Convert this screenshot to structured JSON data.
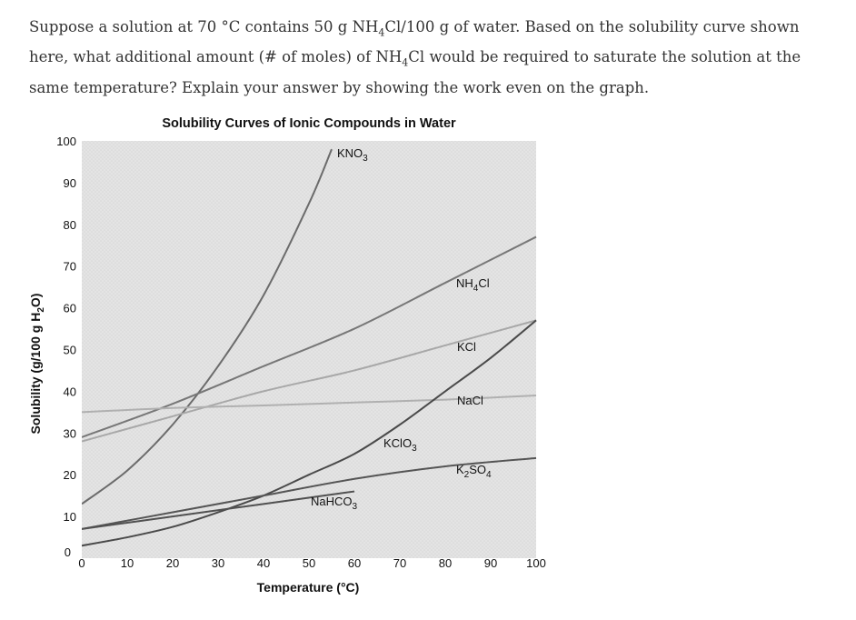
{
  "question": {
    "part1": "Suppose a solution at 70 °C contains 50 g NH",
    "sub1": "4",
    "part2": "Cl/100 g of water. Based on the solubility curve shown here, what additional amount (# of moles) of NH",
    "sub2": "4",
    "part3": "Cl would be required to saturate the solution at the same temperature? Explain your answer by showing the work even on the graph."
  },
  "chart_data": {
    "type": "line",
    "title": "Solubility Curves of Ionic Compounds in Water",
    "xlabel": "Temperature (°C)",
    "ylabel": {
      "main": "Solubility (g/100 g H",
      "sub": "2",
      "end": "O)"
    },
    "xlim": [
      0,
      100
    ],
    "ylim": [
      0,
      100
    ],
    "xticks": [
      0,
      10,
      20,
      30,
      40,
      50,
      60,
      70,
      80,
      90,
      100
    ],
    "yticks": [
      0,
      10,
      20,
      30,
      40,
      50,
      60,
      70,
      80,
      90,
      100
    ],
    "grid": false,
    "series": [
      {
        "name": "KNO3",
        "label": {
          "main": "KNO",
          "sub": "3"
        },
        "color": "#6b6b6b",
        "points": [
          [
            0,
            13
          ],
          [
            10,
            21
          ],
          [
            20,
            32
          ],
          [
            30,
            46
          ],
          [
            40,
            63
          ],
          [
            50,
            85
          ],
          [
            55,
            98
          ]
        ]
      },
      {
        "name": "NH4Cl",
        "label": {
          "main": "NH",
          "sub": "4",
          "end": "Cl"
        },
        "color": "#777777",
        "points": [
          [
            0,
            29
          ],
          [
            20,
            37
          ],
          [
            40,
            46
          ],
          [
            60,
            55
          ],
          [
            80,
            66
          ],
          [
            100,
            77
          ]
        ]
      },
      {
        "name": "KCl",
        "label": {
          "main": "KCl"
        },
        "color": "#a8a8a8",
        "points": [
          [
            0,
            28
          ],
          [
            20,
            34
          ],
          [
            40,
            40
          ],
          [
            60,
            45
          ],
          [
            80,
            51
          ],
          [
            100,
            57
          ]
        ]
      },
      {
        "name": "NaCl",
        "label": {
          "main": "NaCl"
        },
        "color": "#b0b0b0",
        "points": [
          [
            0,
            35
          ],
          [
            20,
            36
          ],
          [
            40,
            36.6
          ],
          [
            60,
            37.3
          ],
          [
            80,
            38
          ],
          [
            100,
            39
          ]
        ]
      },
      {
        "name": "KClO3",
        "label": {
          "main": "KClO",
          "sub": "3"
        },
        "color": "#4a4a4a",
        "points": [
          [
            0,
            3
          ],
          [
            10,
            5
          ],
          [
            20,
            7.5
          ],
          [
            30,
            11
          ],
          [
            40,
            15
          ],
          [
            50,
            20
          ],
          [
            60,
            25
          ],
          [
            70,
            32
          ],
          [
            80,
            40
          ],
          [
            90,
            48
          ],
          [
            100,
            57
          ]
        ]
      },
      {
        "name": "K2SO4",
        "label": {
          "main": "K",
          "sub": "2",
          "end": "SO",
          "sub2": "4"
        },
        "color": "#555555",
        "points": [
          [
            0,
            7
          ],
          [
            20,
            11
          ],
          [
            40,
            15
          ],
          [
            60,
            19
          ],
          [
            80,
            22
          ],
          [
            100,
            24
          ]
        ]
      },
      {
        "name": "NaHCO3",
        "label": {
          "main": "NaHCO",
          "sub": "3"
        },
        "color": "#505050",
        "points": [
          [
            0,
            7
          ],
          [
            20,
            10
          ],
          [
            40,
            13
          ],
          [
            60,
            16
          ]
        ]
      }
    ]
  }
}
